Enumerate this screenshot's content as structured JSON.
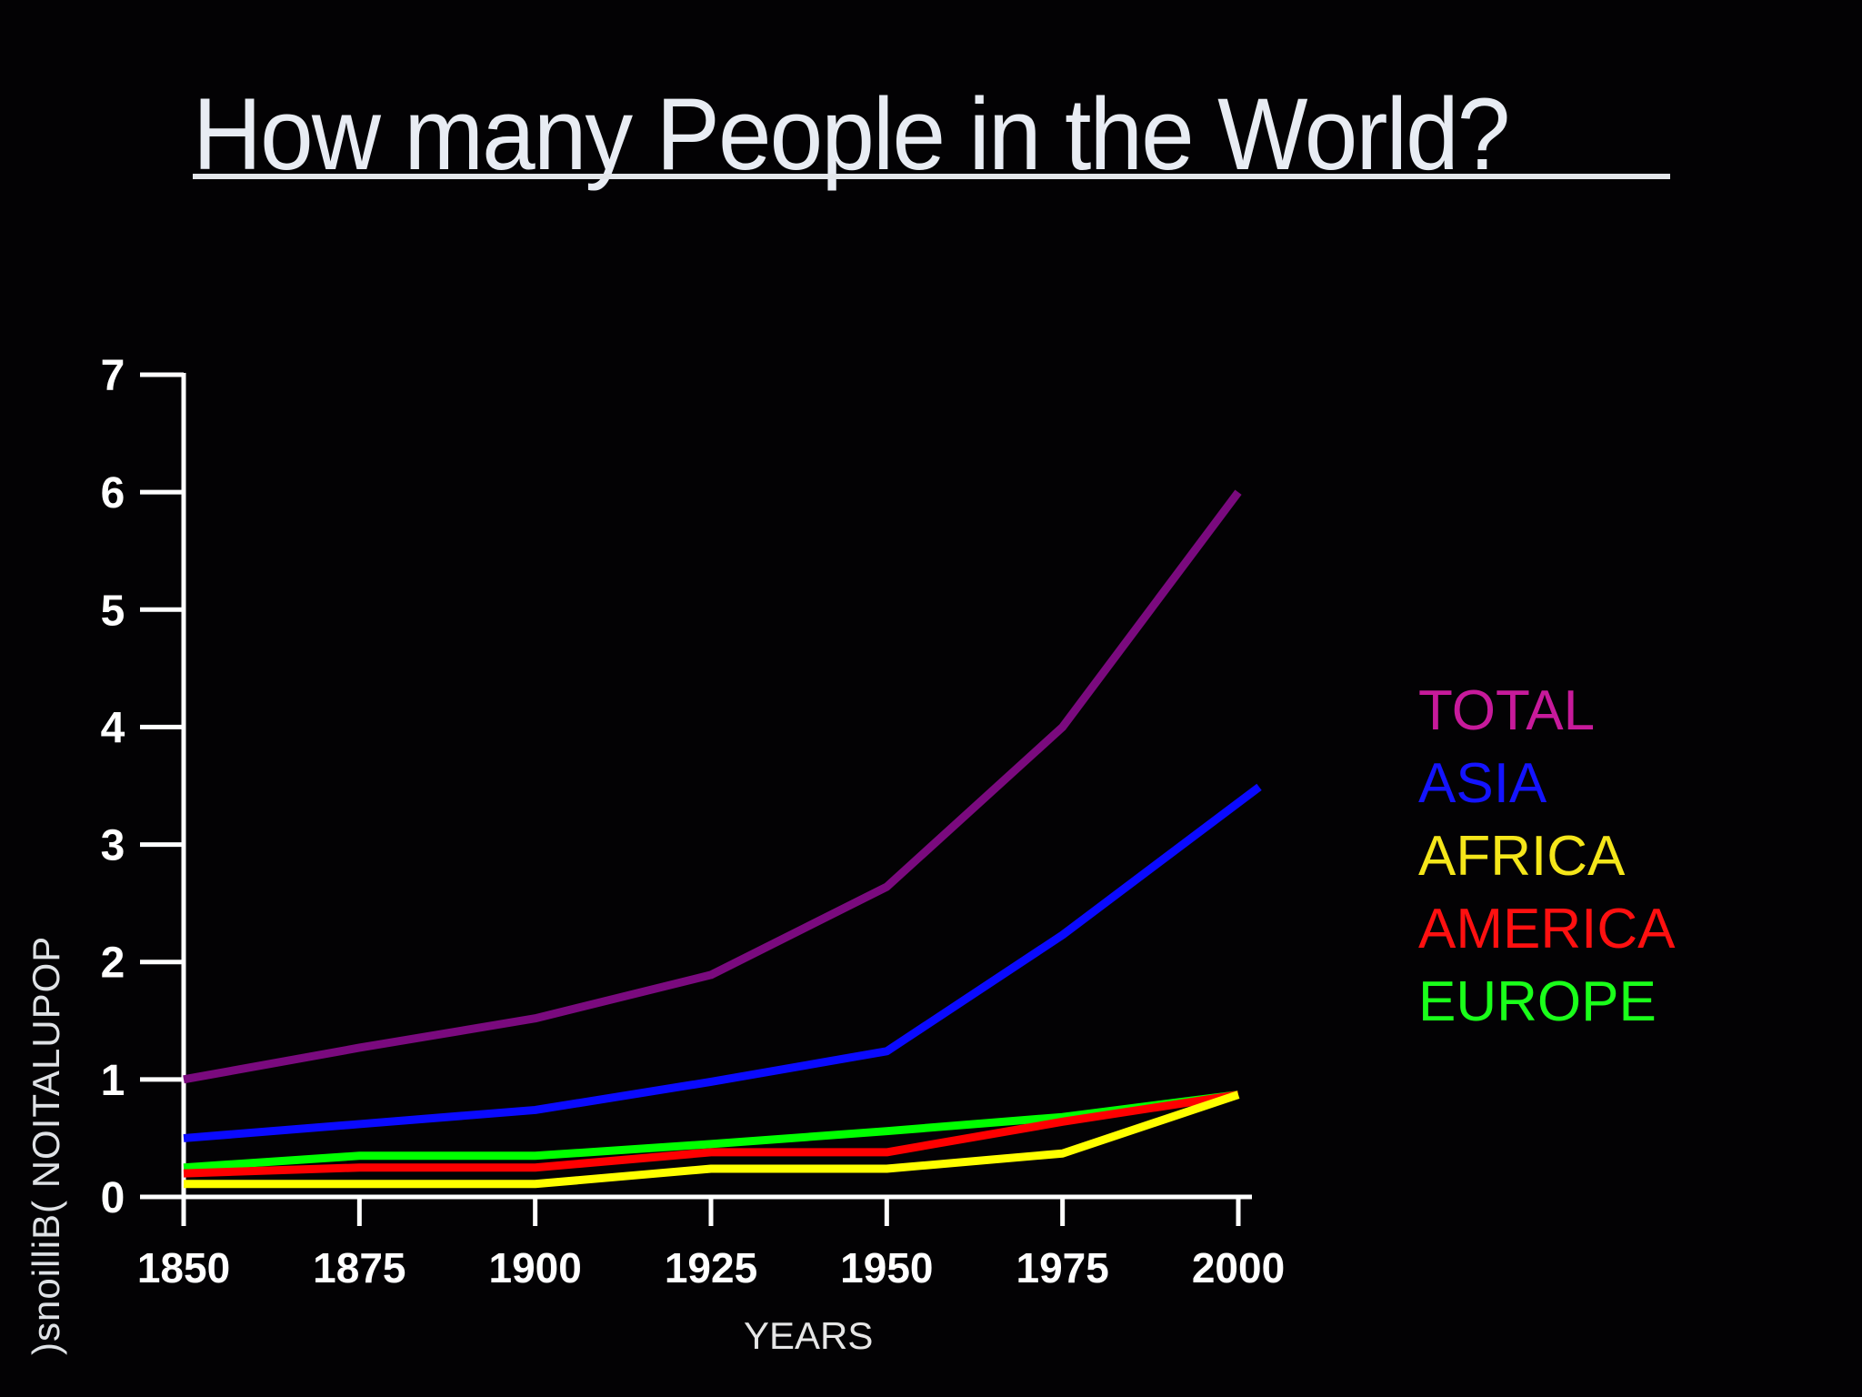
{
  "slide": {
    "title": "How many People in the World?",
    "background": "#030204"
  },
  "chart_data": {
    "type": "line",
    "title": "How many People in the World?",
    "xlabel": "YEARS",
    "ylabel": "POPULATION (Billions)",
    "ylabel_rendered": ")snoilliB( NOITALUPOP",
    "x": [
      1850,
      1875,
      1900,
      1925,
      1950,
      1975,
      2000
    ],
    "x_tick_labels": [
      "1850",
      "1875",
      "1900",
      "1925",
      "1950",
      "1975",
      "2000"
    ],
    "y_tick_labels": [
      "0",
      "1",
      "2",
      "3",
      "4",
      "5",
      "6",
      "7"
    ],
    "ylim": [
      0,
      7
    ],
    "xlim": [
      1850,
      2000
    ],
    "grid": false,
    "legend_position": "right",
    "series": [
      {
        "name": "TOTAL",
        "color": "#7a0a7e",
        "legend_color": "#c71a9b",
        "values": [
          1.0,
          1.27,
          1.52,
          1.89,
          2.64,
          4.0,
          6.0
        ]
      },
      {
        "name": "ASIA",
        "color": "#0a0aff",
        "legend_color": "#1414ff",
        "values": [
          0.5,
          0.62,
          0.74,
          0.98,
          1.24,
          2.23,
          3.49
        ]
      },
      {
        "name": "AFRICA",
        "color": "#ffff00",
        "legend_color": "#f5e61a",
        "values": [
          0.11,
          0.11,
          0.11,
          0.24,
          0.24,
          0.37,
          0.87
        ]
      },
      {
        "name": "AMERICA",
        "color": "#ff0000",
        "legend_color": "#ff1010",
        "values": [
          0.2,
          0.25,
          0.25,
          0.38,
          0.38,
          0.64,
          0.87
        ]
      },
      {
        "name": "EUROPE",
        "color": "#00ff00",
        "legend_color": "#1aff1a",
        "values": [
          0.25,
          0.35,
          0.35,
          0.45,
          0.56,
          0.68,
          0.87
        ]
      }
    ]
  }
}
